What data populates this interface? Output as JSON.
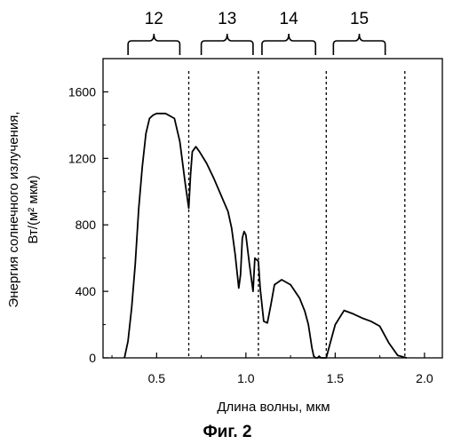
{
  "chart_data": {
    "type": "line",
    "title": "",
    "xlabel": "Длина волны, мкм",
    "ylabel_line1": "Энергия солнечного излучения,",
    "ylabel_line2": "Вт/(м² мкм)",
    "xlim": [
      0.2,
      2.1
    ],
    "ylim": [
      0,
      1800
    ],
    "xticks": [
      0.5,
      1.0,
      1.5,
      2.0
    ],
    "xtick_labels": [
      "0.5",
      "1.0",
      "1.5",
      "2.0"
    ],
    "yticks": [
      0,
      400,
      800,
      1200,
      1600
    ],
    "ytick_labels": [
      "0",
      "400",
      "800",
      "1200",
      "1600"
    ],
    "grid": false,
    "series": [
      {
        "x": [
          0.32,
          0.34,
          0.36,
          0.38,
          0.4,
          0.42,
          0.44,
          0.46,
          0.48,
          0.5,
          0.55,
          0.6,
          0.63,
          0.66,
          0.68,
          0.69,
          0.7,
          0.72,
          0.74,
          0.78,
          0.82,
          0.86,
          0.9,
          0.92,
          0.94,
          0.96,
          0.97,
          0.98,
          0.99,
          1.0,
          1.02,
          1.04,
          1.05,
          1.07,
          1.08,
          1.1,
          1.12,
          1.14,
          1.16,
          1.2,
          1.25,
          1.3,
          1.33,
          1.35,
          1.37,
          1.38,
          1.39,
          1.4,
          1.41,
          1.42,
          1.45,
          1.47,
          1.5,
          1.55,
          1.6,
          1.65,
          1.7,
          1.75,
          1.8,
          1.85,
          1.9
        ],
        "y": [
          0,
          100,
          300,
          560,
          900,
          1150,
          1350,
          1440,
          1460,
          1470,
          1470,
          1440,
          1300,
          1050,
          900,
          1100,
          1240,
          1270,
          1240,
          1170,
          1080,
          980,
          880,
          780,
          620,
          420,
          500,
          720,
          760,
          740,
          560,
          400,
          600,
          580,
          420,
          220,
          210,
          320,
          440,
          470,
          440,
          360,
          280,
          200,
          60,
          10,
          0,
          0,
          10,
          0,
          0,
          80,
          200,
          285,
          265,
          240,
          220,
          190,
          90,
          15,
          0
        ]
      }
    ],
    "region_dividers": [
      0.68,
      1.07,
      1.45,
      1.89
    ],
    "regions": [
      {
        "label": "12",
        "start": 0.34,
        "end": 0.63
      },
      {
        "label": "13",
        "start": 0.75,
        "end": 1.04
      },
      {
        "label": "14",
        "start": 1.09,
        "end": 1.39
      },
      {
        "label": "15",
        "start": 1.49,
        "end": 1.78
      }
    ]
  },
  "caption": "Фиг. 2"
}
